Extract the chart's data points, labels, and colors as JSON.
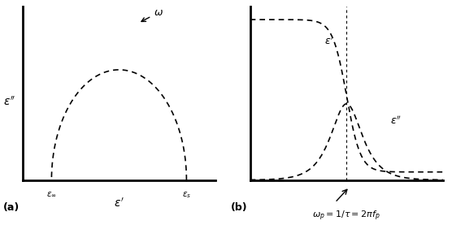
{
  "fig_width": 5.56,
  "fig_height": 2.77,
  "dpi": 100,
  "bg_color": "#ffffff",
  "line_color": "#000000",
  "eps_inf": 0.15,
  "eps_s": 0.85,
  "panel_a_label": "(a)",
  "panel_b_label": "(b)",
  "label_eps_prime_a": "$\\varepsilon'$",
  "label_eps_doubleprime_a": "$\\varepsilon''$",
  "label_eps_inf": "$\\varepsilon_{\\infty}$",
  "label_eps_s": "$\\varepsilon_{s}$",
  "label_omega": "$\\omega$",
  "label_eps_prime_b": "$\\varepsilon'$",
  "label_eps_doubleprime_b": "$\\varepsilon''$",
  "label_omega_p": "$\\omega_p = 1/\\tau = 2\\pi f_p$"
}
